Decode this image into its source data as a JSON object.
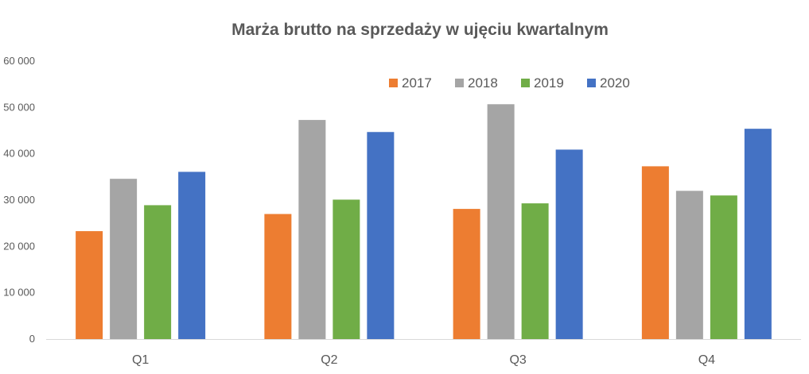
{
  "chart_data": {
    "type": "bar",
    "title": "Marża brutto na sprzedaży w ujęciu kwartalnym",
    "xlabel": "",
    "ylabel": "",
    "categories": [
      "Q1",
      "Q2",
      "Q3",
      "Q4"
    ],
    "ylim": [
      0,
      60000
    ],
    "yticks": [
      0,
      10000,
      20000,
      30000,
      40000,
      50000,
      60000
    ],
    "ytick_labels": [
      "0",
      "10 000",
      "20 000",
      "30 000",
      "40 000",
      "50 000",
      "60 000"
    ],
    "grid": false,
    "legend_position": "top-right",
    "series": [
      {
        "name": "2017",
        "color": "#ED7D31",
        "values": [
          23300,
          27000,
          28100,
          37300
        ]
      },
      {
        "name": "2018",
        "color": "#A5A5A5",
        "values": [
          34600,
          47300,
          50700,
          32000
        ]
      },
      {
        "name": "2019",
        "color": "#70AD47",
        "values": [
          28900,
          30100,
          29300,
          31000
        ]
      },
      {
        "name": "2020",
        "color": "#4472C4",
        "values": [
          36100,
          44700,
          40900,
          45400
        ]
      }
    ]
  }
}
